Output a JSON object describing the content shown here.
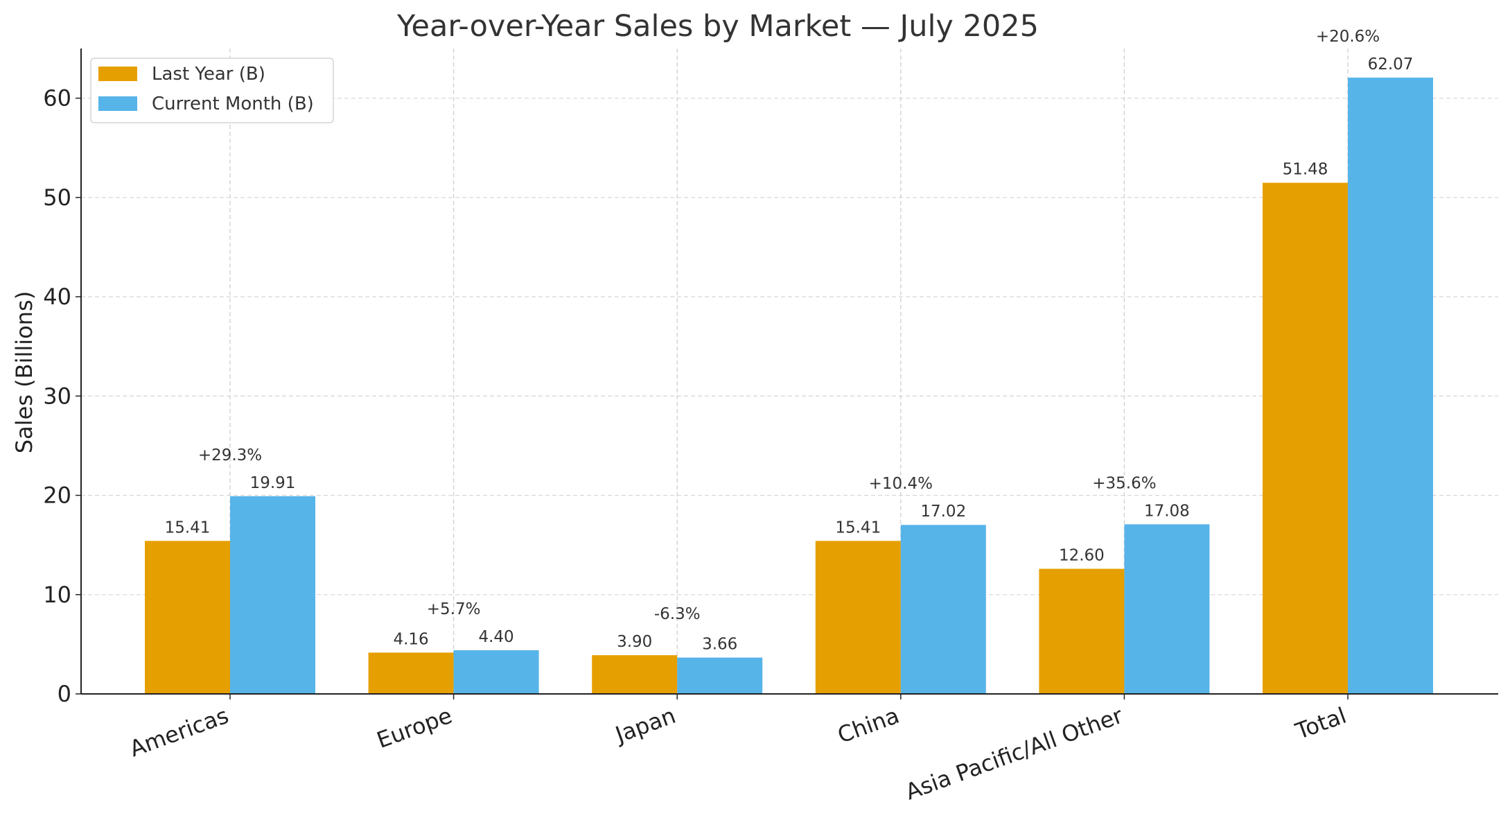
{
  "chart_data": {
    "type": "bar",
    "title": "Year-over-Year Sales by Market — July 2025",
    "xlabel": "",
    "ylabel": "Sales (Billions)",
    "ylim": [
      0,
      65
    ],
    "yticks": [
      0,
      10,
      20,
      30,
      40,
      50,
      60
    ],
    "categories": [
      "Americas",
      "Europe",
      "Japan",
      "China",
      "Asia Pacific/All Other",
      "Total"
    ],
    "series": [
      {
        "name": "Last Year (B)",
        "color": "#E69F00",
        "values": [
          15.41,
          4.16,
          3.9,
          15.41,
          12.6,
          51.48
        ]
      },
      {
        "name": "Current Month (B)",
        "color": "#56B4E9",
        "values": [
          19.91,
          4.4,
          3.66,
          17.02,
          17.08,
          62.07
        ]
      }
    ],
    "value_labels": [
      [
        "15.41",
        "4.16",
        "3.90",
        "15.41",
        "12.60",
        "51.48"
      ],
      [
        "19.91",
        "4.40",
        "3.66",
        "17.02",
        "17.08",
        "62.07"
      ]
    ],
    "change_labels": [
      "+29.3%",
      "+5.7%",
      "-6.3%",
      "+10.4%",
      "+35.6%",
      "+20.6%"
    ],
    "grid": true,
    "legend_position": "top-left"
  }
}
